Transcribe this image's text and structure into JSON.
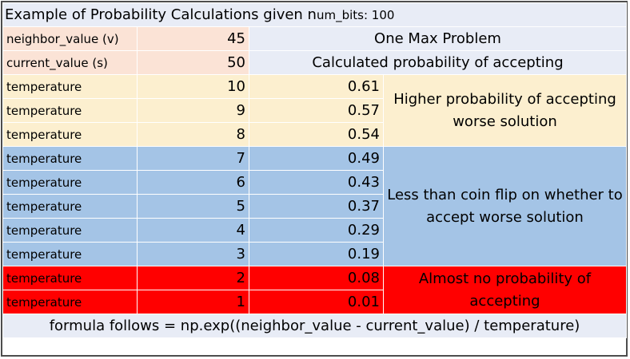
{
  "title": {
    "main": "Example of Probability Calculations given n",
    "suffix": "um_bits: 100"
  },
  "header_rows": [
    {
      "label": "neighbor_value (v)",
      "value": "45",
      "note": "One Max Problem"
    },
    {
      "label": "current_value (s)",
      "value": "50",
      "note": "Calculated probability of accepting"
    }
  ],
  "temperature_label": "temperature",
  "rows": [
    {
      "temperature": "10",
      "probability": "0.61"
    },
    {
      "temperature": "9",
      "probability": "0.57"
    },
    {
      "temperature": "8",
      "probability": "0.54"
    },
    {
      "temperature": "7",
      "probability": "0.49"
    },
    {
      "temperature": "6",
      "probability": "0.43"
    },
    {
      "temperature": "5",
      "probability": "0.37"
    },
    {
      "temperature": "4",
      "probability": "0.29"
    },
    {
      "temperature": "3",
      "probability": "0.19"
    },
    {
      "temperature": "2",
      "probability": "0.08"
    },
    {
      "temperature": "1",
      "probability": "0.01"
    }
  ],
  "groups": {
    "high": "Higher probability of accepting worse solution",
    "mid": "Less than coin flip on whether to accept worse solution",
    "low": "Almost no probability of accepting"
  },
  "footer": "formula follows = np.exp((neighbor_value - current_value) / temperature)",
  "colors": {
    "pink": "#fbe3d6",
    "lavender": "#e8ecf6",
    "cream": "#fcefcf",
    "blue": "#a4c4e6",
    "red": "#ff0000"
  }
}
